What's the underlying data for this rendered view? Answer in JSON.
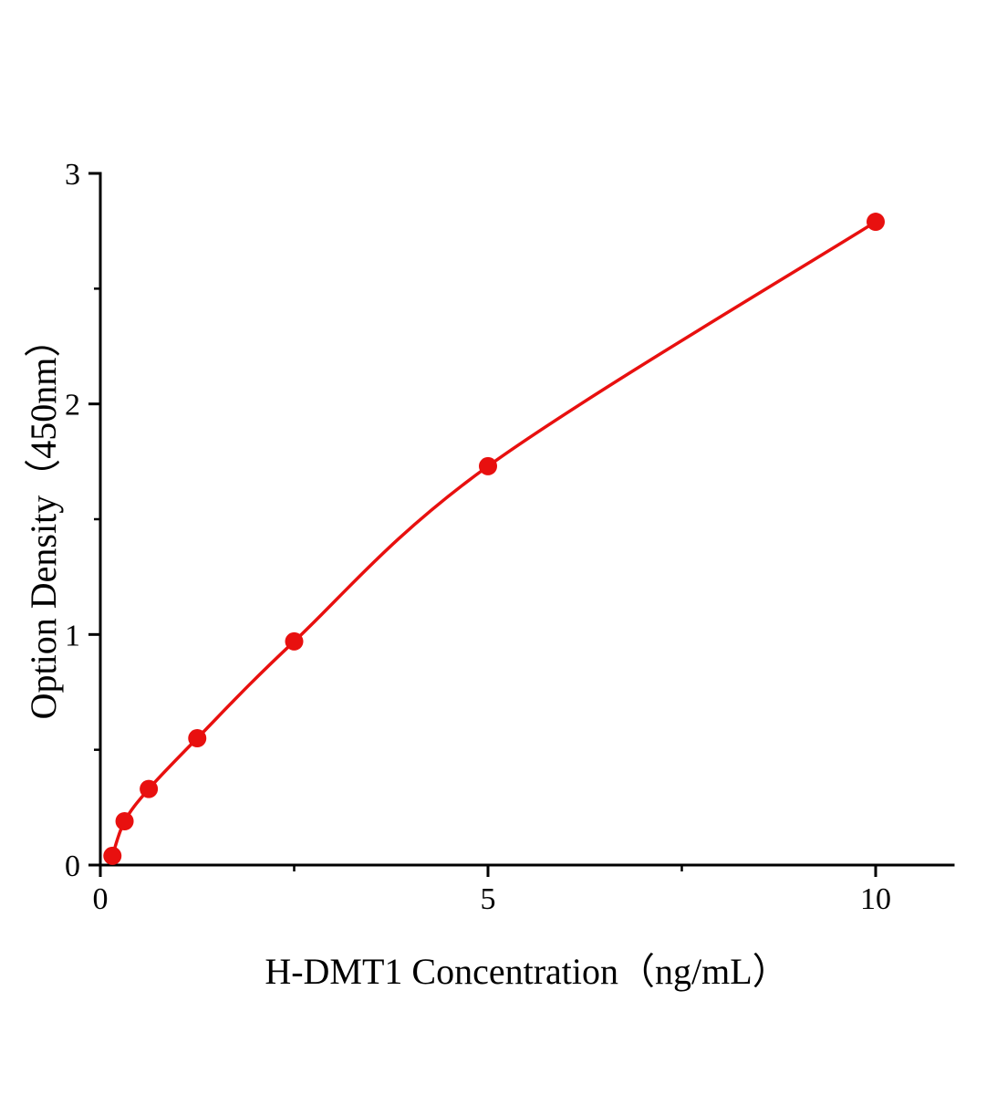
{
  "chart_data": {
    "type": "line",
    "title": "",
    "xlabel": "H-DMT1 Concentration（ng/mL）",
    "ylabel": "Option Density（450nm）",
    "x": [
      0.156,
      0.3125,
      0.625,
      1.25,
      2.5,
      5,
      10
    ],
    "y": [
      0.04,
      0.19,
      0.33,
      0.55,
      0.97,
      1.73,
      2.79
    ],
    "xlim": [
      0,
      11
    ],
    "ylim": [
      0,
      3
    ],
    "x_ticks": [
      0,
      5,
      10
    ],
    "x_minor_ticks": [
      2.5,
      7.5
    ],
    "y_ticks": [
      0,
      1,
      2,
      3
    ],
    "y_minor_ticks": [
      0.5,
      1.5,
      2.5
    ],
    "line_color": "#e8100f",
    "marker_color": "#e8100f",
    "axis_color": "#000000",
    "grid": false,
    "legend": null,
    "marker_radius": 10,
    "line_width": 3.5
  }
}
